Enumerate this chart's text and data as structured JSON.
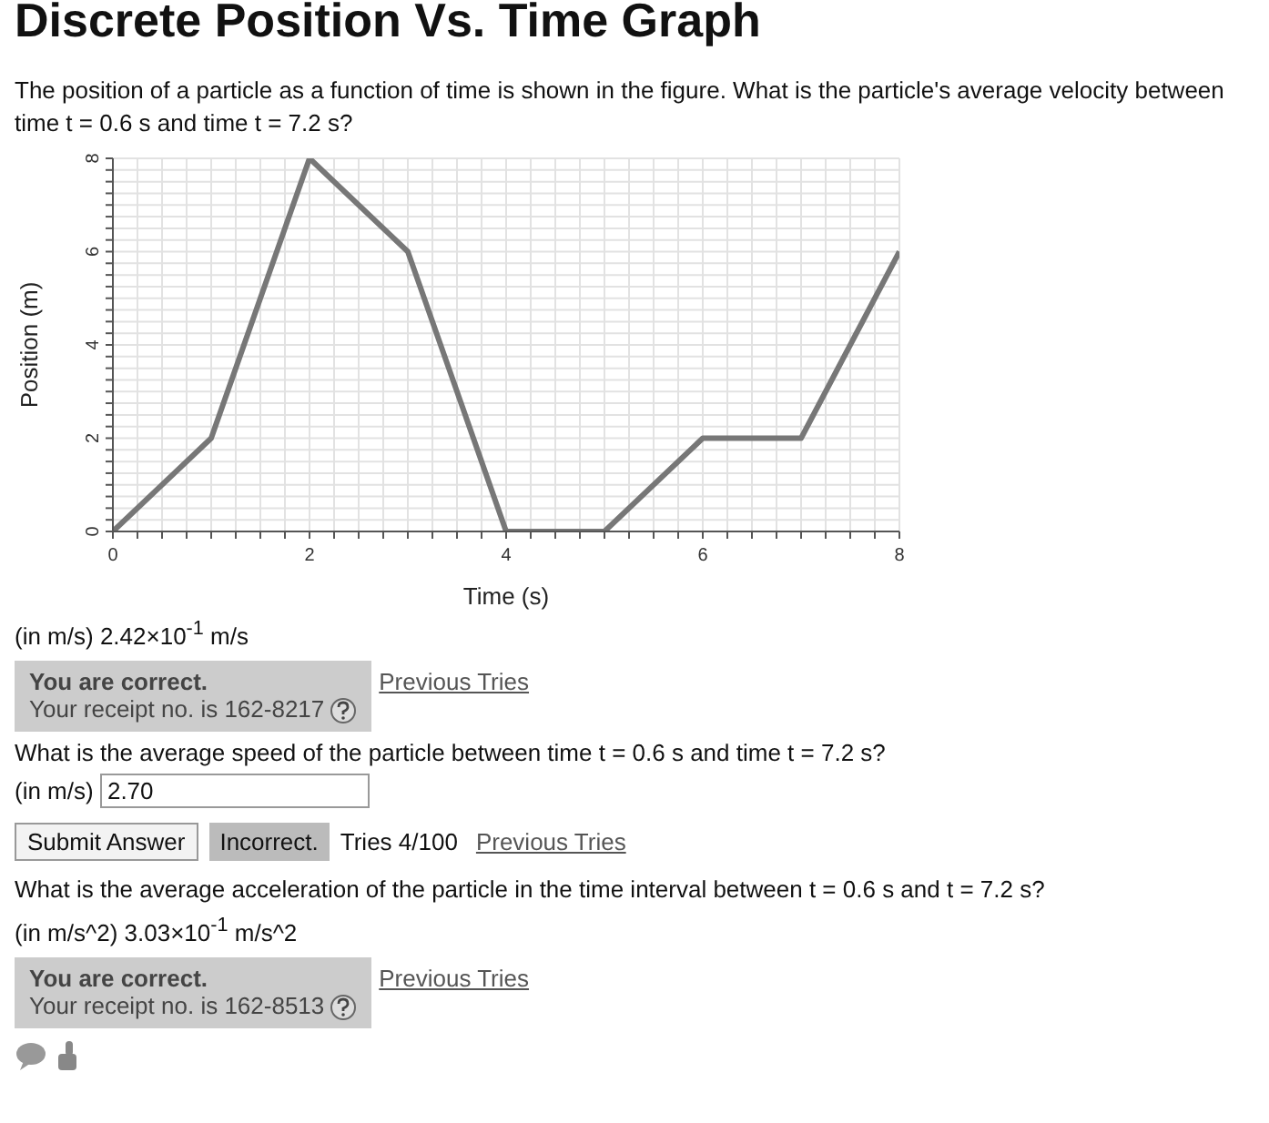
{
  "chart_data": {
    "type": "line",
    "title": "Discrete Position Vs. Time Graph",
    "subtitle": "The position of a particle as a function of time is shown in the figure. What is the particle's average velocity between time t = 0.6 s and time t = 7.2 s?",
    "xlabel": "Time (s)",
    "ylabel": "Position (m)",
    "x": [
      0,
      1,
      2,
      3,
      4,
      5,
      6,
      7,
      8
    ],
    "series": [
      {
        "color": "#777777",
        "values": [
          0,
          2,
          8,
          6,
          0,
          0,
          2,
          2,
          6
        ]
      }
    ],
    "xlim": [
      0,
      8
    ],
    "ylim": [
      0,
      8
    ],
    "xticks": [
      0,
      {
        "value": 0.25,
        "label": null
      },
      {
        "value": 0.5,
        "label": null
      },
      {
        "value": 0.75,
        "label": null
      },
      {
        "value": 1,
        "label": null
      },
      {
        "value": 1.25,
        "label": null
      },
      {
        "value": 1.5,
        "label": null
      },
      {
        "value": 1.75,
        "label": null
      },
      2,
      {
        "value": 2.25,
        "label": null
      },
      {
        "value": 2.5,
        "label": null
      },
      {
        "value": 2.75,
        "label": null
      },
      {
        "value": 3,
        "label": null
      },
      {
        "value": 3.25,
        "label": null
      },
      {
        "value": 3.5,
        "label": null
      },
      {
        "value": 3.75,
        "label": null
      },
      4,
      {
        "value": 4.25,
        "label": null
      },
      {
        "value": 4.5,
        "label": null
      },
      {
        "value": 4.75,
        "label": null
      },
      {
        "value": 5,
        "label": null
      },
      {
        "value": 5.25,
        "label": null
      },
      {
        "value": 5.5,
        "label": null
      },
      {
        "value": 5.75,
        "label": null
      },
      6,
      {
        "value": 6.25,
        "label": null
      },
      {
        "value": 6.5,
        "label": null
      },
      {
        "value": 6.75,
        "label": null
      },
      {
        "value": 7,
        "label": null
      },
      {
        "value": 7.25,
        "label": null
      },
      {
        "value": 7.5,
        "label": null
      },
      {
        "value": 7.75,
        "label": null
      },
      8
    ],
    "yticks": [
      0,
      {
        "value": 0.25,
        "label": null
      },
      {
        "value": 0.5,
        "label": null
      },
      {
        "value": 0.75,
        "label": null
      },
      {
        "value": 1,
        "label": null
      },
      {
        "value": 1.25,
        "label": null
      },
      {
        "value": 1.5,
        "label": null
      },
      {
        "value": 1.75,
        "label": null
      },
      2,
      {
        "value": 2.25,
        "label": null
      },
      {
        "value": 2.5,
        "label": null
      },
      {
        "value": 2.75,
        "label": null
      },
      {
        "value": 3,
        "label": null
      },
      {
        "value": 3.25,
        "label": null
      },
      {
        "value": 3.5,
        "label": null
      },
      {
        "value": 3.75,
        "label": null
      },
      4,
      {
        "value": 4.25,
        "label": null
      },
      {
        "value": 4.5,
        "label": null
      },
      {
        "value": 4.75,
        "label": null
      },
      {
        "value": 5,
        "label": null
      },
      {
        "value": 5.25,
        "label": null
      },
      {
        "value": 5.5,
        "label": null
      },
      {
        "value": 5.75,
        "label": null
      },
      6,
      {
        "value": 6.25,
        "label": null
      },
      {
        "value": 6.5,
        "label": null
      },
      {
        "value": 6.75,
        "label": null
      },
      {
        "value": 7,
        "label": null
      },
      {
        "value": 7.25,
        "label": null
      },
      {
        "value": 7.5,
        "label": null
      },
      {
        "value": 7.75,
        "label": null
      },
      8
    ],
    "grid": true,
    "marker": "none",
    "line_style": "solid",
    "legend": false,
    "annotations": [
      "(in m/s) 2.42×10$^{-1}$ m/s",
      "You are correct.",
      "Your receipt no. is 162-8217",
      "Previous Tries",
      "What is the average speed of the particle between time t = 0.6 s and time t = 7.2 s?",
      "(in m/s)",
      "2.70",
      "Submit Answer",
      "Incorrect.",
      "Tries 4/100",
      "Previous Tries",
      "What is the average acceleration of the particle in the time interval between t = 0.6 s and t = 7.2 s?",
      "(in m/s^2) 3.03×10$^{-1}$ m/s^2",
      "You are correct.",
      "Your receipt no. is 162-8513",
      "Previous Tries"
    ]
  }
}
